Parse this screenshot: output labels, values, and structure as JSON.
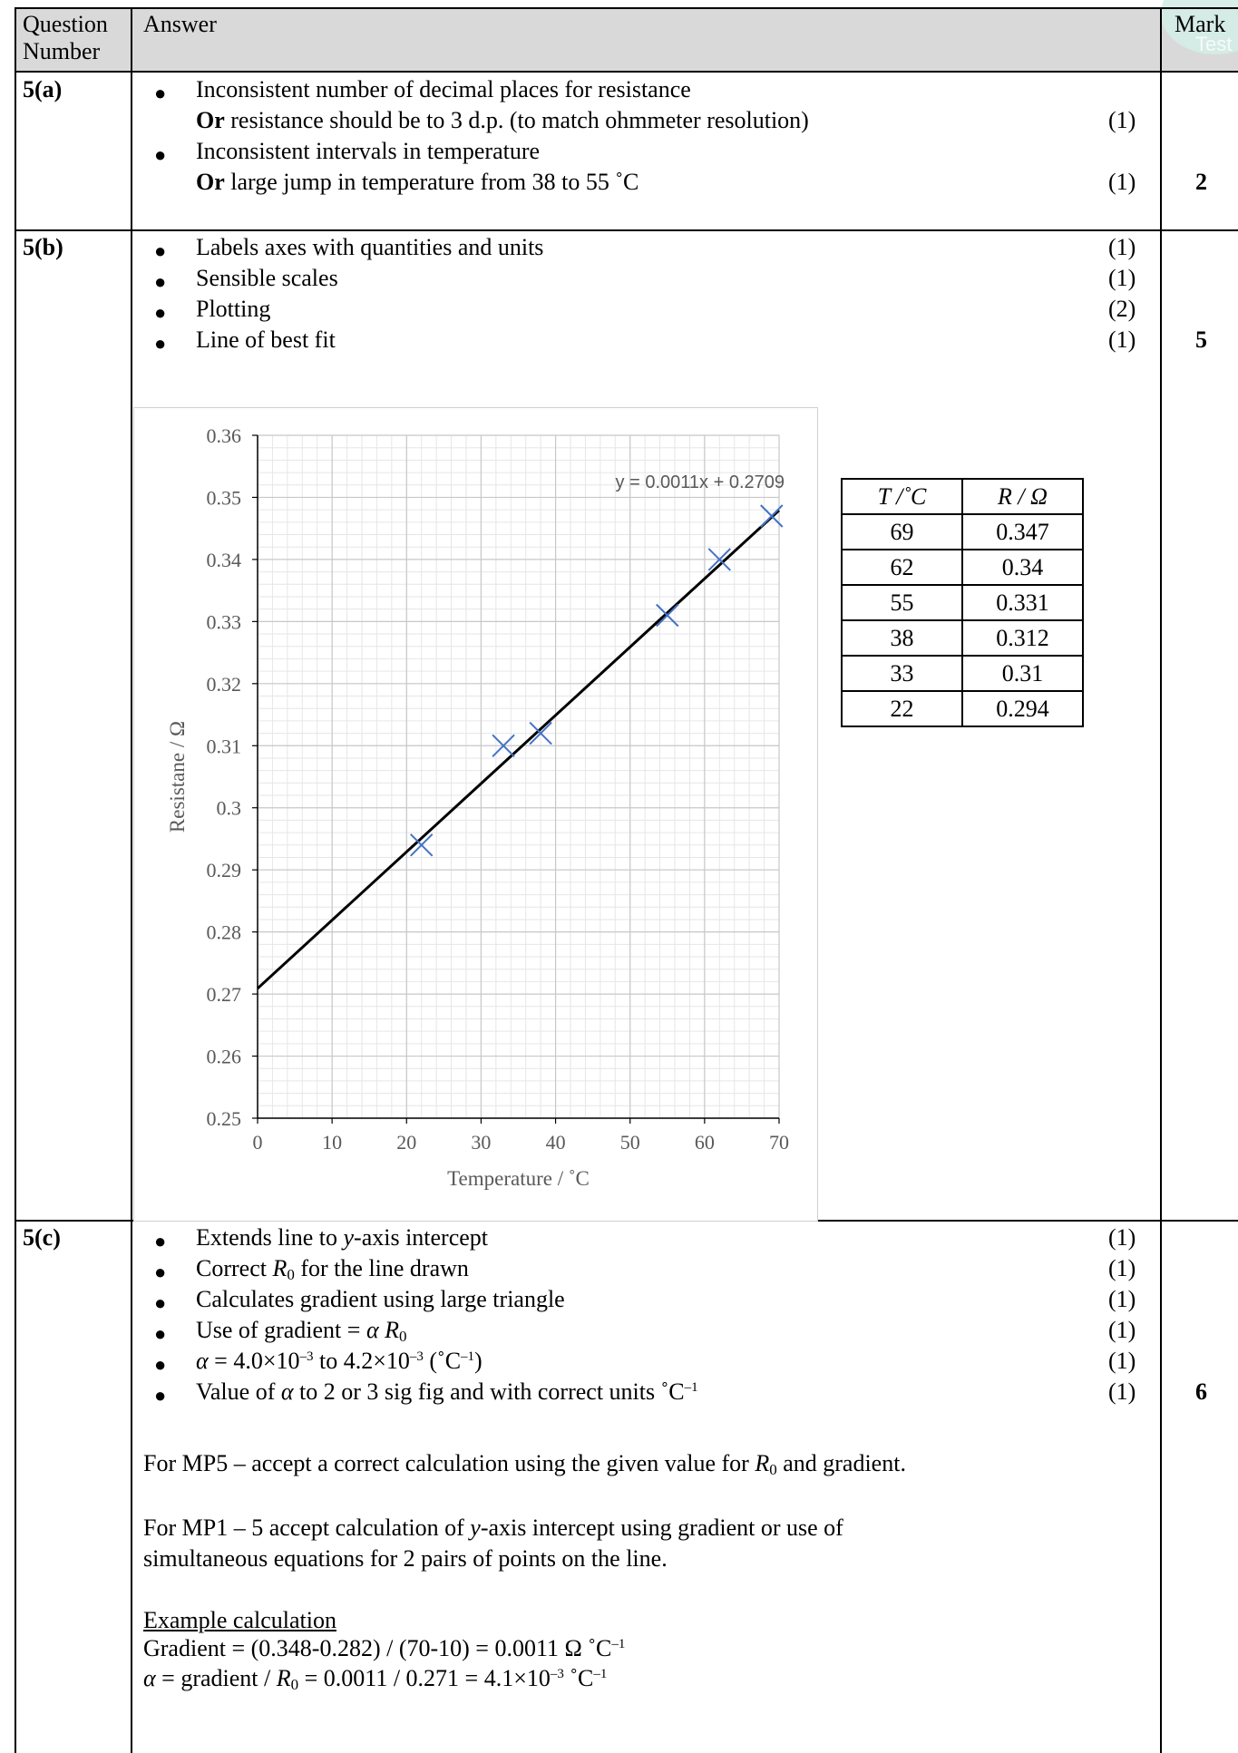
{
  "header": {
    "question_number": "Question Number",
    "answer": "Answer",
    "mark": "Mark",
    "logo_text": "Test"
  },
  "q5a": {
    "number": "5(a)",
    "line1": "Inconsistent number of decimal places for resistance",
    "line2_bold": "Or",
    "line2": " resistance should be to 3 d.p. (to match ohmmeter resolution)",
    "mark1": "(1)",
    "line3": "Inconsistent intervals in temperature",
    "line4_bold": "Or",
    "line4": " large jump in temperature from 38 to 55 ˚C",
    "mark2": "(1)",
    "total": "2"
  },
  "q5b": {
    "number": "5(b)",
    "items": [
      {
        "text": "Labels axes with quantities and units",
        "mark": "(1)"
      },
      {
        "text": "Sensible scales",
        "mark": "(1)"
      },
      {
        "text": "Plotting",
        "mark": "(2)"
      },
      {
        "text": "Line of best fit",
        "mark": "(1)"
      }
    ],
    "total": "5"
  },
  "table": {
    "col1": "T /˚C",
    "col2": "R / Ω",
    "rows": [
      [
        "69",
        "0.347"
      ],
      [
        "62",
        "0.34"
      ],
      [
        "55",
        "0.331"
      ],
      [
        "38",
        "0.312"
      ],
      [
        "33",
        "0.31"
      ],
      [
        "22",
        "0.294"
      ]
    ]
  },
  "chart_data": {
    "type": "scatter",
    "xlabel": "Temperature / ˚C",
    "ylabel": "Resistane / Ω",
    "xlim": [
      0,
      70
    ],
    "ylim": [
      0.25,
      0.36
    ],
    "x_ticks": [
      "0",
      "10",
      "20",
      "30",
      "40",
      "50",
      "60",
      "70"
    ],
    "y_ticks": [
      "0.25",
      "0.26",
      "0.27",
      "0.28",
      "0.29",
      "0.3",
      "0.31",
      "0.32",
      "0.33",
      "0.34",
      "0.35",
      "0.36"
    ],
    "grid": true,
    "series": [
      {
        "x": [
          22,
          33,
          38,
          55,
          62,
          69
        ],
        "y": [
          0.294,
          0.31,
          0.312,
          0.331,
          0.34,
          0.347
        ],
        "marker": "x",
        "color": "#4472c4"
      }
    ],
    "trendline": {
      "slope": 0.0011,
      "intercept": 0.2709,
      "x_range": [
        0,
        70
      ],
      "label": "y = 0.0011x + 0.2709",
      "color": "#000000"
    }
  },
  "q5c": {
    "number": "5(c)",
    "total": "6",
    "marks": [
      "(1)",
      "(1)",
      "(1)",
      "(1)",
      "(1)",
      "(1)"
    ],
    "b1_a": "Extends line to ",
    "b1_i": "y",
    "b1_b": "-axis intercept",
    "b2_a": "Correct ",
    "b2_i": "R",
    "b2_sub": "0",
    "b2_b": " for the line drawn",
    "b3": "Calculates gradient using large triangle",
    "b4_a": "Use of gradient = ",
    "b4_alpha": "α",
    "b4_r": "R",
    "b4_sub": "0",
    "b5_alpha": "α",
    "b5_a": " = 4.0×10",
    "b5_sup1": "–3",
    "b5_b": " to 4.2×10",
    "b5_sup2": "–3",
    "b5_c": " (˚C",
    "b5_sup3": "–1",
    "b5_d": ")",
    "b6_a": "Value of ",
    "b6_alpha": "α",
    "b6_b": " to 2 or 3 sig fig and with correct units ˚C",
    "b6_sup": "–1",
    "mp5_a": "For MP5 – accept a correct calculation using the given value for ",
    "mp5_r": "R",
    "mp5_sub": "0",
    "mp5_b": " and gradient.",
    "mp1_a": "For MP1 – 5 accept calculation of ",
    "mp1_i": "y",
    "mp1_b": "-axis intercept using gradient or use of",
    "mp1_c": "simultaneous equations for 2 pairs of points on the line.",
    "example_title": "Example calculation",
    "grad_a": "Gradient = (0.348-0.282) / (70-10) = 0.0011 Ω ˚C",
    "grad_sup": "–1",
    "alpha_sym": "α",
    "alpha_a": " = gradient / ",
    "alpha_r": "R",
    "alpha_sub": "0",
    "alpha_b": " = 0.0011 / 0.271 = 4.1×10",
    "alpha_sup1": "–3",
    "alpha_c": " ˚C",
    "alpha_sup2": "–1"
  }
}
